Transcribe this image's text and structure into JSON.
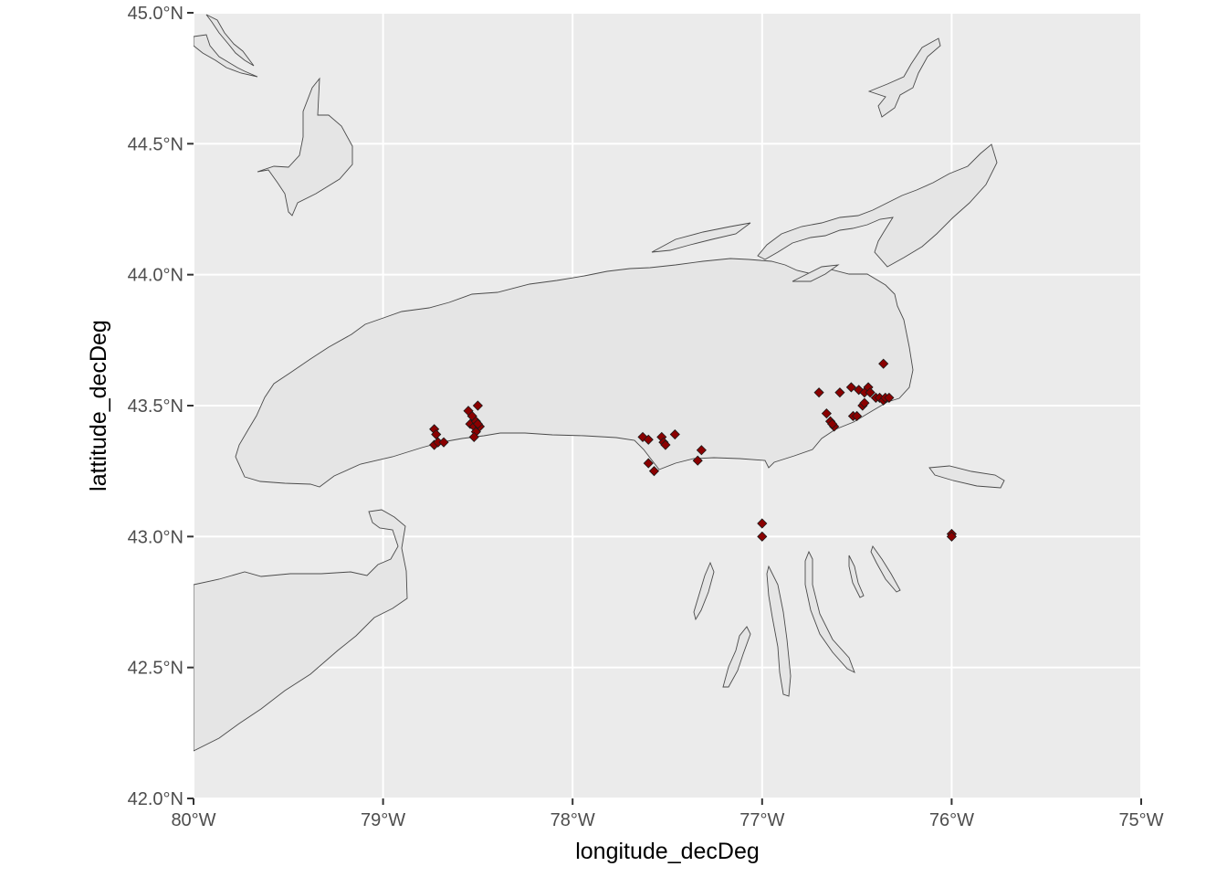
{
  "chart_data": {
    "type": "scatter",
    "title": "",
    "xlabel": "longitude_decDeg",
    "ylabel": "lattitude_decDeg",
    "xlim": [
      -80,
      -75
    ],
    "ylim": [
      42,
      45
    ],
    "x_ticks": [
      -80,
      -79,
      -78,
      -77,
      -76,
      -75
    ],
    "y_ticks": [
      42.0,
      42.5,
      43.0,
      43.5,
      44.0,
      44.5,
      45.0
    ],
    "x_tick_labels": [
      "80°W",
      "79°W",
      "78°W",
      "77°W",
      "76°W",
      "75°W"
    ],
    "y_tick_labels": [
      "42.0°N",
      "42.5°N",
      "43.0°N",
      "43.5°N",
      "44.0°N",
      "44.5°N",
      "45.0°N"
    ],
    "marker": "diamond",
    "marker_color": "#8b0000",
    "panel_background": "#ebebeb",
    "grid": true,
    "series": [
      {
        "points": [
          [
            -78.73,
            43.41
          ],
          [
            -78.72,
            43.39
          ],
          [
            -78.73,
            43.35
          ],
          [
            -78.71,
            43.36
          ],
          [
            -78.68,
            43.36
          ],
          [
            -78.55,
            43.48
          ],
          [
            -78.53,
            43.46
          ],
          [
            -78.5,
            43.5
          ],
          [
            -78.54,
            43.43
          ],
          [
            -78.52,
            43.42
          ],
          [
            -78.51,
            43.44
          ],
          [
            -78.49,
            43.42
          ],
          [
            -78.51,
            43.4
          ],
          [
            -78.52,
            43.38
          ],
          [
            -78.5,
            43.43
          ],
          [
            -77.63,
            43.38
          ],
          [
            -77.6,
            43.37
          ],
          [
            -77.53,
            43.38
          ],
          [
            -77.52,
            43.36
          ],
          [
            -77.51,
            43.35
          ],
          [
            -77.46,
            43.39
          ],
          [
            -77.6,
            43.28
          ],
          [
            -77.57,
            43.25
          ],
          [
            -77.32,
            43.33
          ],
          [
            -77.34,
            43.29
          ],
          [
            -76.7,
            43.55
          ],
          [
            -76.66,
            43.47
          ],
          [
            -76.64,
            43.44
          ],
          [
            -76.62,
            43.42
          ],
          [
            -76.63,
            43.43
          ],
          [
            -76.59,
            43.55
          ],
          [
            -76.53,
            43.57
          ],
          [
            -76.52,
            43.46
          ],
          [
            -76.5,
            43.46
          ],
          [
            -76.49,
            43.56
          ],
          [
            -76.47,
            43.5
          ],
          [
            -76.46,
            43.51
          ],
          [
            -76.46,
            43.55
          ],
          [
            -76.44,
            43.57
          ],
          [
            -76.43,
            43.55
          ],
          [
            -76.4,
            43.53
          ],
          [
            -76.38,
            43.53
          ],
          [
            -76.36,
            43.52
          ],
          [
            -76.35,
            43.53
          ],
          [
            -76.33,
            43.53
          ],
          [
            -76.36,
            43.66
          ],
          [
            -77.0,
            43.05
          ],
          [
            -77.0,
            43.0
          ],
          [
            -76.0,
            43.01
          ],
          [
            -76.0,
            43.0
          ]
        ]
      }
    ]
  }
}
